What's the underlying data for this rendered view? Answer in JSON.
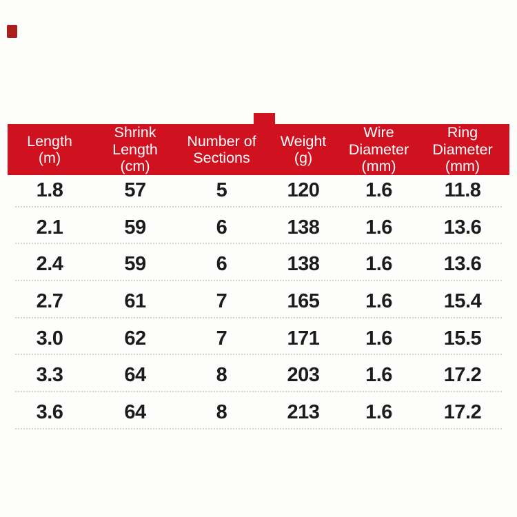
{
  "page": {
    "background_color": "#fdfdfc",
    "accent_red": "#d0111f",
    "artifact_dot_color": "#a81f1c",
    "header_text_color": "#ffffff",
    "body_text_color": "#1c1c1e",
    "separator_color": "#d2d2d2"
  },
  "table": {
    "columns": [
      {
        "id": "length",
        "label_lines": [
          "Length",
          "(m)"
        ],
        "label": "Length (m)"
      },
      {
        "id": "shrink_length",
        "label_lines": [
          "Shrink",
          "Length",
          "(cm)"
        ],
        "label": "Shrink Length (cm)"
      },
      {
        "id": "sections",
        "label_lines": [
          "Number of",
          "Sections"
        ],
        "label": "Number of Sections"
      },
      {
        "id": "weight",
        "label_lines": [
          "Weight",
          "(g)"
        ],
        "label": "Weight (g)"
      },
      {
        "id": "wire_diameter",
        "label_lines": [
          "Wire",
          "Diameter",
          "(mm)"
        ],
        "label": "Wire Diameter (mm)"
      },
      {
        "id": "ring_diameter",
        "label_lines": [
          "Ring",
          "Diameter",
          "(mm)"
        ],
        "label": "Ring Diameter (mm)"
      }
    ],
    "rows": [
      [
        "1.8",
        "57",
        "5",
        "120",
        "1.6",
        "11.8"
      ],
      [
        "2.1",
        "59",
        "6",
        "138",
        "1.6",
        "13.6"
      ],
      [
        "2.4",
        "59",
        "6",
        "138",
        "1.6",
        "13.6"
      ],
      [
        "2.7",
        "61",
        "7",
        "165",
        "1.6",
        "15.4"
      ],
      [
        "3.0",
        "62",
        "7",
        "171",
        "1.6",
        "15.5"
      ],
      [
        "3.3",
        "64",
        "8",
        "203",
        "1.6",
        "17.2"
      ],
      [
        "3.6",
        "64",
        "8",
        "213",
        "1.6",
        "17.2"
      ]
    ]
  },
  "chart_data": {
    "type": "table",
    "title": "",
    "columns": [
      "Length (m)",
      "Shrink Length (cm)",
      "Number of Sections",
      "Weight (g)",
      "Wire Diameter (mm)",
      "Ring Diameter (mm)"
    ],
    "rows": [
      [
        1.8,
        57,
        5,
        120,
        1.6,
        11.8
      ],
      [
        2.1,
        59,
        6,
        138,
        1.6,
        13.6
      ],
      [
        2.4,
        59,
        6,
        138,
        1.6,
        13.6
      ],
      [
        2.7,
        61,
        7,
        165,
        1.6,
        15.4
      ],
      [
        3.0,
        62,
        7,
        171,
        1.6,
        15.5
      ],
      [
        3.3,
        64,
        8,
        203,
        1.6,
        17.2
      ],
      [
        3.6,
        64,
        8,
        213,
        1.6,
        17.2
      ]
    ]
  }
}
